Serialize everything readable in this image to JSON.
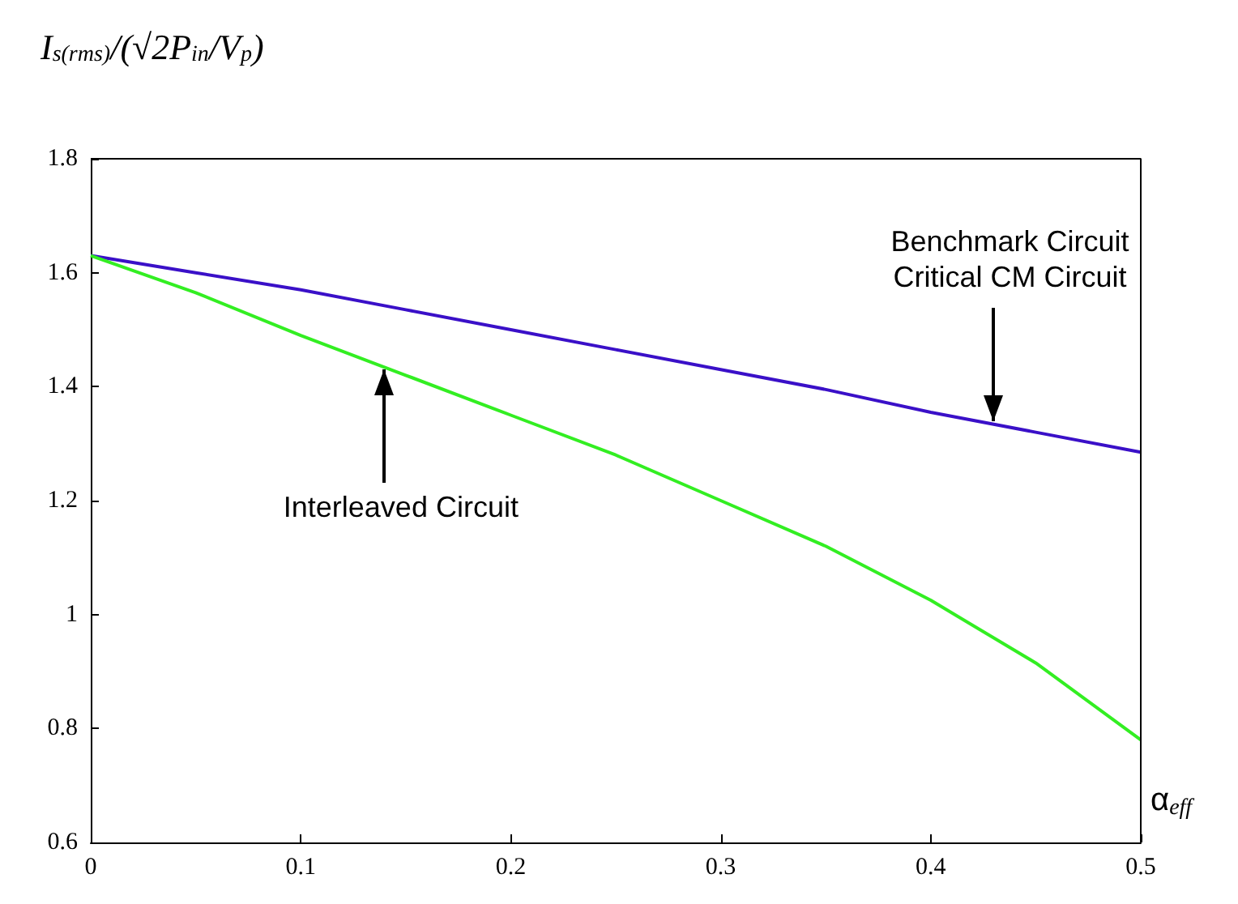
{
  "chart_data": {
    "type": "line",
    "title": "I$_{s(rms)}$/(√2P$_{in}$/V$_{p}$)",
    "xlabel": "α$_{eff}$",
    "x": [
      0,
      0.05,
      0.1,
      0.15,
      0.2,
      0.25,
      0.3,
      0.35,
      0.4,
      0.45,
      0.5
    ],
    "series": [
      {
        "color": "#3a10c8",
        "values": [
          1.63,
          1.6,
          1.57,
          1.535,
          1.5,
          1.465,
          1.43,
          1.395,
          1.355,
          1.32,
          1.285
        ]
      },
      {
        "color": "#33ee22",
        "values": [
          1.63,
          1.565,
          1.49,
          1.42,
          1.35,
          1.28,
          1.2,
          1.12,
          1.025,
          0.915,
          0.78
        ]
      }
    ],
    "xlim": [
      0,
      0.5
    ],
    "xticks": [
      0,
      0.1,
      0.2,
      0.3,
      0.4,
      0.5
    ],
    "ylim": [
      0.6,
      1.8
    ],
    "yticks": [
      0.6,
      0.8,
      1,
      1.2,
      1.4,
      1.6,
      1.8
    ],
    "annotations": [
      {
        "text": "Interleaved Circuit",
        "x": 0.14,
        "y": 1.43
      },
      {
        "text": "Benchmark Circuit\nCritical CM Circuit",
        "x": 0.43,
        "y": 1.34
      }
    ],
    "grid": false,
    "marker": "none",
    "line_style": "solid"
  }
}
